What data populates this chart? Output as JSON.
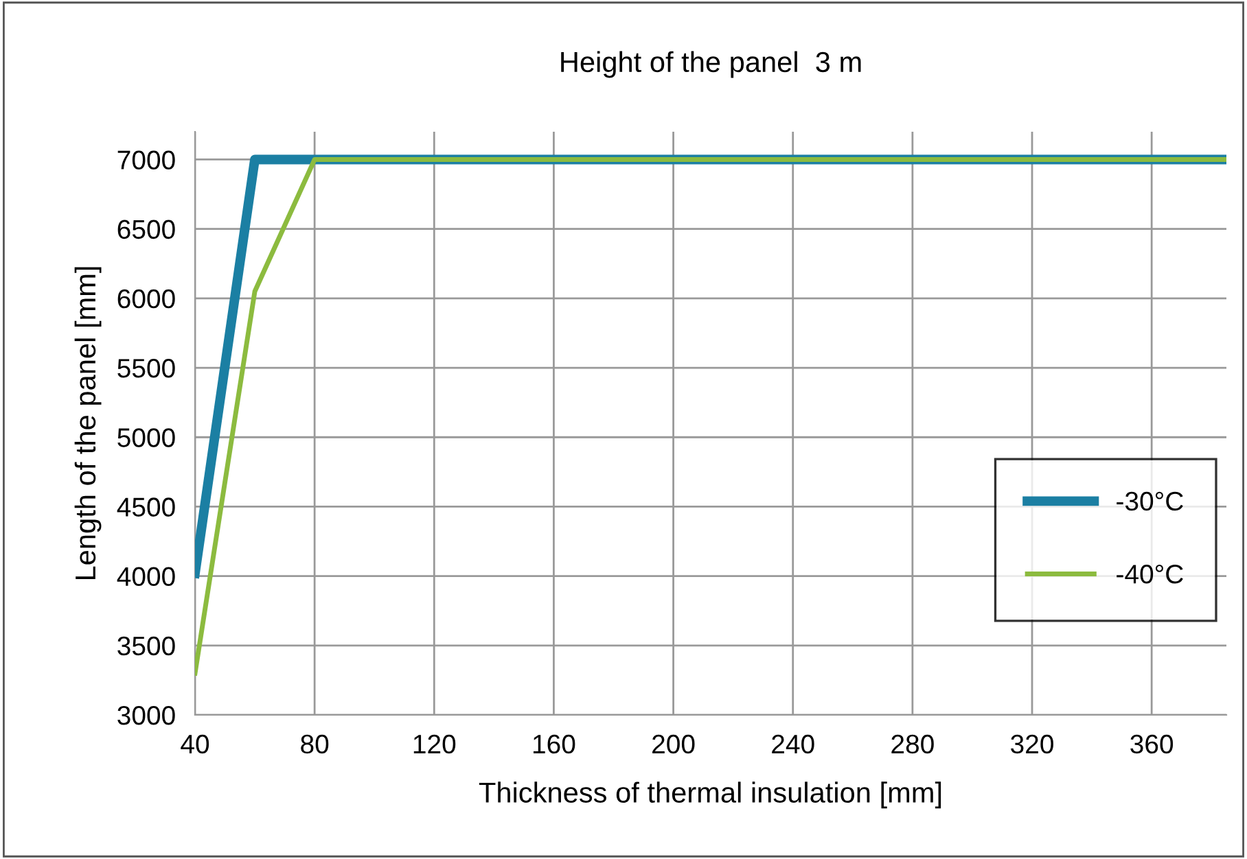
{
  "chart_data": {
    "type": "line",
    "title": "Height of the panel  3 m",
    "xlabel": "Thickness of thermal insulation [mm]",
    "ylabel": "Length of the panel [mm]",
    "x": [
      40,
      60,
      80,
      385
    ],
    "series": [
      {
        "name": "-30°C",
        "color": "#1b7fa3",
        "values": [
          4020,
          7000,
          7000,
          7000
        ]
      },
      {
        "name": "-40°C",
        "color": "#8cbb3f",
        "values": [
          3300,
          6050,
          7000,
          7000
        ]
      }
    ],
    "xlim": [
      40,
      385
    ],
    "xticks": [
      40,
      80,
      120,
      160,
      200,
      240,
      280,
      320,
      360
    ],
    "ylim": [
      3000,
      7200
    ],
    "yticks": [
      3000,
      3500,
      4000,
      4500,
      5000,
      5500,
      6000,
      6500,
      7000
    ],
    "grid": true,
    "legend": "right",
    "marker": "none",
    "line_style": "solid"
  }
}
